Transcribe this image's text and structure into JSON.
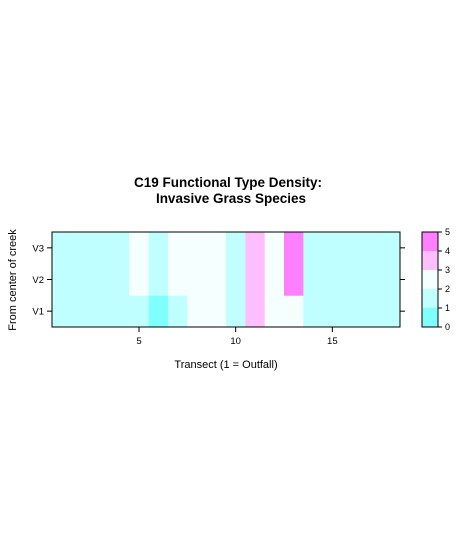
{
  "chart_data": {
    "type": "heatmap",
    "title_line1": "C19 Functional Type Density:",
    "title_line2": "Invasive Grass Species",
    "xlabel": "Transect (1 = Outfall)",
    "ylabel": "From center of creek",
    "xlim": [
      0.5,
      18.5
    ],
    "x_ticks": [
      5,
      10,
      15
    ],
    "rows": [
      "V1",
      "V2",
      "V3"
    ],
    "x": [
      1,
      2,
      3,
      4,
      5,
      6,
      7,
      8,
      9,
      10,
      11,
      12,
      13,
      14,
      15,
      16,
      17,
      18
    ],
    "values": {
      "V1": [
        1,
        1,
        1,
        1,
        1,
        0,
        1,
        2,
        2,
        1,
        3,
        2,
        2,
        1,
        1,
        1,
        1,
        1
      ],
      "V2": [
        1,
        1,
        1,
        1,
        2,
        1,
        2,
        2,
        2,
        1,
        3,
        2,
        4,
        1,
        1,
        1,
        1,
        1
      ],
      "V3": [
        1,
        1,
        1,
        1,
        2,
        1,
        2,
        2,
        2,
        1,
        3,
        2,
        4,
        1,
        1,
        1,
        1,
        1
      ]
    },
    "colorkey": {
      "breaks": [
        0,
        1,
        2,
        3,
        4,
        5
      ],
      "labels": [
        "0",
        "1",
        "2",
        "3",
        "4",
        "5"
      ],
      "colors": [
        "#80ffff",
        "#bfffff",
        "#f5ffff",
        "#ffbfff",
        "#ff80ff"
      ]
    }
  }
}
